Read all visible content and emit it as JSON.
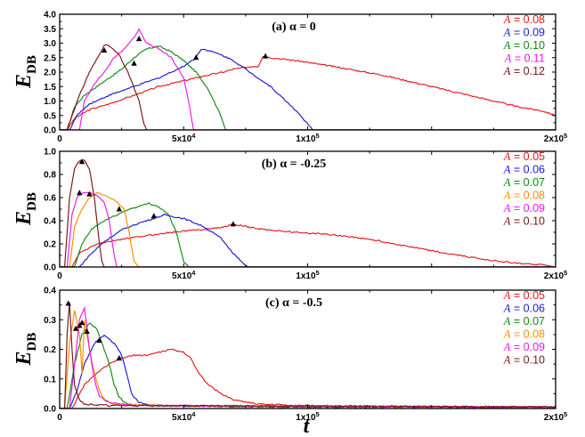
{
  "figure": {
    "xlabel": "t",
    "ylabel_main": "E",
    "ylabel_sub": "DB"
  },
  "chart_data": [
    {
      "type": "line",
      "title": "(a) α = 0",
      "xlim": [
        0,
        200000
      ],
      "ylim": [
        0,
        4.0
      ],
      "x_ticks": [
        0,
        50000,
        100000,
        150000,
        200000
      ],
      "x_tick_labels": [
        "0",
        "5x10^4",
        "1x10^5",
        "",
        "2x10^5"
      ],
      "y_ticks": [
        0,
        0.5,
        1.0,
        1.5,
        2.0,
        2.5,
        3.0,
        3.5,
        4.0
      ],
      "y_tick_labels": [
        "0.0",
        "0.5",
        "1.0",
        "1.5",
        "2.0",
        "2.5",
        "3.0",
        "3.5",
        "4.0"
      ],
      "legend_position": "top-right",
      "series": [
        {
          "name": "A = 0.08",
          "legend_prefix": "A",
          "legend_value": " = 0.08",
          "color": "#e8191b",
          "x": [
            3000,
            6000,
            12000,
            20000,
            30000,
            40000,
            50000,
            60000,
            66000,
            70000,
            78000,
            80000,
            82000,
            85000,
            95000,
            110000,
            130000,
            150000,
            170000,
            185000,
            195000,
            200000
          ],
          "y": [
            0,
            0.4,
            0.7,
            0.9,
            1.2,
            1.5,
            1.7,
            1.9,
            2.0,
            2.1,
            2.2,
            2.2,
            2.55,
            2.5,
            2.4,
            2.2,
            1.9,
            1.5,
            1.1,
            0.8,
            0.65,
            0.5
          ],
          "markers": [
            {
              "x": 83000,
              "y": 2.55
            }
          ]
        },
        {
          "name": "A = 0.09",
          "legend_prefix": "A",
          "legend_value": " = 0.09",
          "color": "#1a1ad4",
          "x": [
            4000,
            7000,
            12000,
            20000,
            30000,
            40000,
            50000,
            55000,
            57000,
            60000,
            65000,
            70000,
            75000,
            80000,
            85000,
            90000,
            95000,
            100000,
            102000
          ],
          "y": [
            0,
            0.5,
            0.9,
            1.2,
            1.5,
            1.8,
            2.2,
            2.5,
            2.8,
            2.75,
            2.6,
            2.4,
            2.1,
            1.8,
            1.5,
            1.1,
            0.7,
            0.2,
            0
          ],
          "markers": [
            {
              "x": 55000,
              "y": 2.5
            }
          ]
        },
        {
          "name": "A = 0.10",
          "legend_prefix": "A",
          "legend_value": " = 0.10",
          "color": "#0f8a0f",
          "x": [
            3000,
            6000,
            10000,
            15000,
            20000,
            25000,
            30000,
            35000,
            40000,
            45000,
            50000,
            55000,
            60000,
            65000,
            67000
          ],
          "y": [
            0,
            0.8,
            1.2,
            1.5,
            1.8,
            2.1,
            2.5,
            2.8,
            2.9,
            2.7,
            2.4,
            2.0,
            1.4,
            0.5,
            0
          ],
          "markers": [
            {
              "x": 30000,
              "y": 2.3
            }
          ]
        },
        {
          "name": "A = 0.11",
          "legend_prefix": "A",
          "legend_value": " = 0.11",
          "color": "#ee16ee",
          "x": [
            8000,
            10000,
            14000,
            18000,
            22000,
            26000,
            30000,
            32000,
            35000,
            40000,
            45000,
            50000,
            52000,
            54000
          ],
          "y": [
            0,
            1.0,
            1.6,
            2.0,
            2.5,
            2.8,
            3.2,
            3.5,
            3.0,
            2.8,
            2.5,
            1.8,
            1.0,
            0
          ],
          "markers": [
            {
              "x": 32000,
              "y": 3.15
            }
          ]
        },
        {
          "name": "A = 0.12",
          "legend_prefix": "A",
          "legend_value": " = 0.12",
          "color": "#7a1414",
          "x": [
            3000,
            5000,
            8000,
            12000,
            16000,
            18000,
            20000,
            24000,
            28000,
            32000,
            34000,
            35000
          ],
          "y": [
            0,
            0.5,
            1.2,
            2.0,
            2.6,
            2.95,
            2.9,
            2.6,
            1.9,
            1.0,
            0.2,
            0
          ],
          "markers": [
            {
              "x": 18000,
              "y": 2.75
            }
          ]
        }
      ],
      "legend": [
        {
          "prefix": "A",
          "value": " = 0.08",
          "color": "#e8191b"
        },
        {
          "prefix": "A",
          "value": " = 0.09",
          "color": "#1a1ad4"
        },
        {
          "prefix": "A",
          "value": " = 0.10",
          "color": "#0f8a0f"
        },
        {
          "prefix": "A",
          "value": " = 0.11",
          "color": "#ee16ee"
        },
        {
          "prefix": "A",
          "value": " = 0.12",
          "color": "#7a1414"
        }
      ]
    },
    {
      "type": "line",
      "title": "(b) α = -0.25",
      "xlim": [
        0,
        200000
      ],
      "ylim": [
        0,
        1.0
      ],
      "x_ticks": [
        0,
        50000,
        100000,
        150000,
        200000
      ],
      "x_tick_labels": [
        "0",
        "5x10^4",
        "1x10^5",
        "",
        "2x10^5"
      ],
      "y_ticks": [
        0,
        0.2,
        0.4,
        0.6,
        0.8,
        1.0
      ],
      "y_tick_labels": [
        "0.0",
        "0.2",
        "0.4",
        "0.6",
        "0.8",
        "1.0"
      ],
      "legend_position": "top-right",
      "series": [
        {
          "name": "A = 0.05",
          "legend_prefix": "A",
          "legend_value": " = 0.05",
          "color": "#e8191b",
          "x": [
            5000,
            8000,
            15000,
            25000,
            35000,
            45000,
            55000,
            65000,
            70000,
            80000,
            95000,
            110000,
            125000,
            140000,
            155000,
            170000,
            185000,
            195000
          ],
          "y": [
            0,
            0.12,
            0.2,
            0.24,
            0.27,
            0.3,
            0.32,
            0.34,
            0.37,
            0.33,
            0.3,
            0.28,
            0.24,
            0.18,
            0.12,
            0.07,
            0.03,
            0.02
          ],
          "markers": [
            {
              "x": 70000,
              "y": 0.37
            }
          ]
        },
        {
          "name": "A = 0.06",
          "legend_prefix": "A",
          "legend_value": " = 0.06",
          "color": "#1a1ad4",
          "x": [
            8000,
            12000,
            18000,
            25000,
            32000,
            38000,
            42000,
            50000,
            58000,
            65000,
            70000,
            74000,
            76000
          ],
          "y": [
            0,
            0.1,
            0.22,
            0.32,
            0.38,
            0.42,
            0.45,
            0.42,
            0.35,
            0.25,
            0.12,
            0.03,
            0
          ],
          "markers": [
            {
              "x": 38000,
              "y": 0.44
            }
          ]
        },
        {
          "name": "A = 0.07",
          "legend_prefix": "A",
          "legend_value": " = 0.07",
          "color": "#0f8a0f",
          "x": [
            6000,
            9000,
            13000,
            18000,
            23000,
            28000,
            33000,
            36000,
            40000,
            44000,
            47000,
            50000,
            52000
          ],
          "y": [
            0,
            0.2,
            0.33,
            0.4,
            0.45,
            0.5,
            0.53,
            0.55,
            0.52,
            0.45,
            0.3,
            0.05,
            0
          ],
          "markers": [
            {
              "x": 24000,
              "y": 0.5
            }
          ]
        },
        {
          "name": "A = 0.08",
          "legend_prefix": "A",
          "legend_value": " = 0.08",
          "color": "#ff8c00",
          "x": [
            4000,
            6000,
            9000,
            12000,
            15000,
            18000,
            22000,
            26000,
            28000,
            30000,
            32000
          ],
          "y": [
            0,
            0.35,
            0.5,
            0.6,
            0.64,
            0.62,
            0.58,
            0.5,
            0.3,
            0.05,
            0
          ],
          "markers": [
            {
              "x": 12000,
              "y": 0.63
            }
          ]
        },
        {
          "name": "A = 0.09",
          "legend_prefix": "A",
          "legend_value": " = 0.09",
          "color": "#ee16ee",
          "x": [
            3000,
            5000,
            7000,
            9000,
            12000,
            15000,
            18000,
            20000,
            22000,
            23000
          ],
          "y": [
            0,
            0.45,
            0.6,
            0.64,
            0.64,
            0.62,
            0.56,
            0.4,
            0.1,
            0
          ],
          "markers": [
            {
              "x": 8000,
              "y": 0.64
            }
          ]
        },
        {
          "name": "A = 0.10",
          "legend_prefix": "A",
          "legend_value": " = 0.10",
          "color": "#7a1414",
          "x": [
            2000,
            4000,
            6000,
            8000,
            10000,
            12000,
            14000,
            16000,
            17000,
            18000
          ],
          "y": [
            0,
            0.6,
            0.85,
            0.92,
            0.92,
            0.85,
            0.6,
            0.2,
            0.05,
            0
          ],
          "markers": [
            {
              "x": 9000,
              "y": 0.91
            }
          ]
        }
      ],
      "legend": [
        {
          "prefix": "A",
          "value": " = 0.05",
          "color": "#e8191b"
        },
        {
          "prefix": "A",
          "value": " = 0.06",
          "color": "#1a1ad4"
        },
        {
          "prefix": "A",
          "value": " = 0.07",
          "color": "#0f8a0f"
        },
        {
          "prefix": "A",
          "value": " = 0.08",
          "color": "#ff8c00"
        },
        {
          "prefix": "A",
          "value": " = 0.09",
          "color": "#ee16ee"
        },
        {
          "prefix": "A",
          "value": " = 0.10",
          "color": "#7a1414"
        }
      ]
    },
    {
      "type": "line",
      "title": "(c) α = -0.5",
      "xlim": [
        0,
        200000
      ],
      "ylim": [
        0,
        0.4
      ],
      "x_ticks": [
        0,
        50000,
        100000,
        150000,
        200000
      ],
      "x_tick_labels": [
        "0",
        "5x10^4",
        "1x10^5",
        "",
        "2x10^5"
      ],
      "y_ticks": [
        0,
        0.1,
        0.2,
        0.3,
        0.4
      ],
      "y_tick_labels": [
        "0.0",
        "0.1",
        "0.2",
        "0.3",
        "0.4"
      ],
      "legend_position": "top-right",
      "series": [
        {
          "name": "A = 0.05",
          "legend_prefix": "A",
          "legend_value": " = 0.05",
          "color": "#e8191b",
          "x": [
            5000,
            10000,
            15000,
            20000,
            25000,
            30000,
            35000,
            40000,
            45000,
            50000,
            53000,
            56000,
            60000,
            65000,
            70000,
            80000,
            100000,
            130000,
            160000,
            200000
          ],
          "y": [
            0,
            0.08,
            0.12,
            0.15,
            0.17,
            0.18,
            0.18,
            0.19,
            0.2,
            0.19,
            0.17,
            0.12,
            0.08,
            0.05,
            0.03,
            0.015,
            0.01,
            0.008,
            0.005,
            0.005
          ],
          "markers": [
            {
              "x": 24000,
              "y": 0.17
            }
          ]
        },
        {
          "name": "A = 0.06",
          "legend_prefix": "A",
          "legend_value": " = 0.06",
          "color": "#1a1ad4",
          "x": [
            4000,
            7000,
            10000,
            14000,
            18000,
            22000,
            25000,
            27000,
            29000,
            32000,
            36000,
            40000,
            60000,
            100000,
            150000,
            200000
          ],
          "y": [
            0,
            0.06,
            0.15,
            0.22,
            0.25,
            0.22,
            0.18,
            0.12,
            0.05,
            0.02,
            0.012,
            0.01,
            0.008,
            0.005,
            0.005,
            0.005
          ],
          "markers": [
            {
              "x": 16000,
              "y": 0.23
            }
          ]
        },
        {
          "name": "A = 0.07",
          "legend_prefix": "A",
          "legend_value": " = 0.07",
          "color": "#0f8a0f",
          "x": [
            3000,
            6000,
            9000,
            12000,
            15000,
            18000,
            20000,
            22000,
            24000,
            26000,
            30000,
            40000,
            80000,
            200000
          ],
          "y": [
            0,
            0.15,
            0.25,
            0.29,
            0.27,
            0.2,
            0.15,
            0.08,
            0.04,
            0.02,
            0.012,
            0.01,
            0.006,
            0.005
          ],
          "markers": [
            {
              "x": 11000,
              "y": 0.26
            }
          ]
        },
        {
          "name": "A = 0.08",
          "legend_prefix": "A",
          "legend_value": " = 0.08",
          "color": "#ff8c00",
          "x": [
            2000,
            4000,
            6000,
            8000,
            9000,
            10000,
            12000,
            14000,
            16000,
            18000,
            22000,
            40000,
            200000
          ],
          "y": [
            0,
            0.22,
            0.33,
            0.25,
            0.12,
            0.3,
            0.2,
            0.12,
            0.06,
            0.03,
            0.015,
            0.01,
            0.005
          ],
          "markers": [
            {
              "x": 9000,
              "y": 0.29
            }
          ]
        },
        {
          "name": "A = 0.09",
          "legend_prefix": "A",
          "legend_value": " = 0.09",
          "color": "#ee16ee",
          "x": [
            4000,
            6000,
            8000,
            10000,
            11000,
            12000,
            14000,
            16000,
            20000,
            30000,
            200000
          ],
          "y": [
            0,
            0.15,
            0.3,
            0.34,
            0.28,
            0.2,
            0.1,
            0.04,
            0.02,
            0.01,
            0.005
          ],
          "markers": [
            {
              "x": 8000,
              "y": 0.28
            }
          ]
        },
        {
          "name": "A = 0.10",
          "legend_prefix": "A",
          "legend_value": " = 0.10",
          "color": "#7a1414",
          "x": [
            2000,
            3000,
            4000,
            5000,
            6000,
            8000,
            10000,
            20000,
            200000
          ],
          "y": [
            0,
            0.25,
            0.36,
            0.2,
            0.08,
            0.03,
            0.015,
            0.01,
            0.005
          ],
          "markers": [
            {
              "x": 3500,
              "y": 0.355
            },
            {
              "x": 6500,
              "y": 0.27
            }
          ]
        }
      ],
      "legend": [
        {
          "prefix": "A",
          "value": " = 0.05",
          "color": "#e8191b"
        },
        {
          "prefix": "A",
          "value": " = 0.06",
          "color": "#1a1ad4"
        },
        {
          "prefix": "A",
          "value": " = 0.07",
          "color": "#0f8a0f"
        },
        {
          "prefix": "A",
          "value": " = 0.08",
          "color": "#ff8c00"
        },
        {
          "prefix": "A",
          "value": " = 0.09",
          "color": "#ee16ee"
        },
        {
          "prefix": "A",
          "value": " = 0.10",
          "color": "#7a1414"
        }
      ]
    }
  ]
}
